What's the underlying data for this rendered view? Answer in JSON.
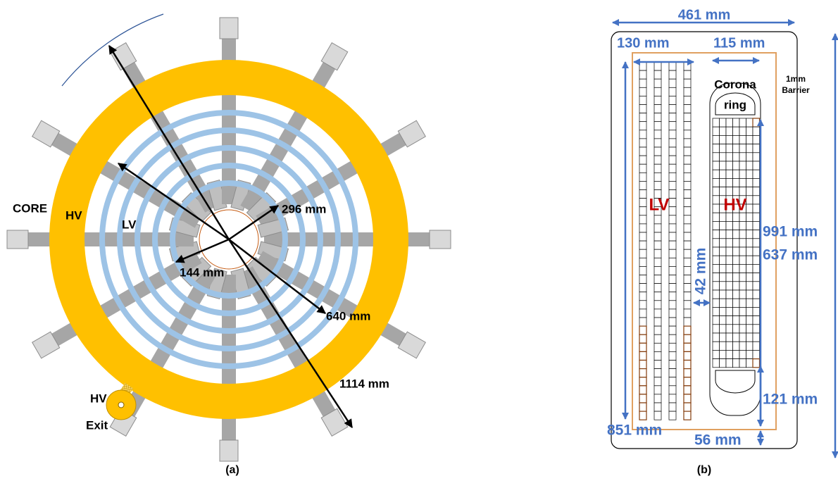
{
  "panel_a": {
    "core": "CORE",
    "hv": "HV",
    "lv": "LV",
    "dims": [
      "296 mm",
      "144 mm",
      "640 mm",
      "1114 mm"
    ],
    "hv_exit": [
      "HV",
      "Exit"
    ],
    "caption": "(a)"
  },
  "panel_b": {
    "width": "461 mm",
    "lv_width": "130 mm",
    "hv_width": "115 mm",
    "corona": [
      "Corona",
      "ring"
    ],
    "barrier": [
      "1mm",
      "Barrier"
    ],
    "lv": "LV",
    "hv": "HV",
    "heights": [
      "991 mm",
      "637 mm",
      "42 mm",
      "121 mm",
      "851 mm",
      "56 mm"
    ],
    "caption": "(b)"
  }
}
